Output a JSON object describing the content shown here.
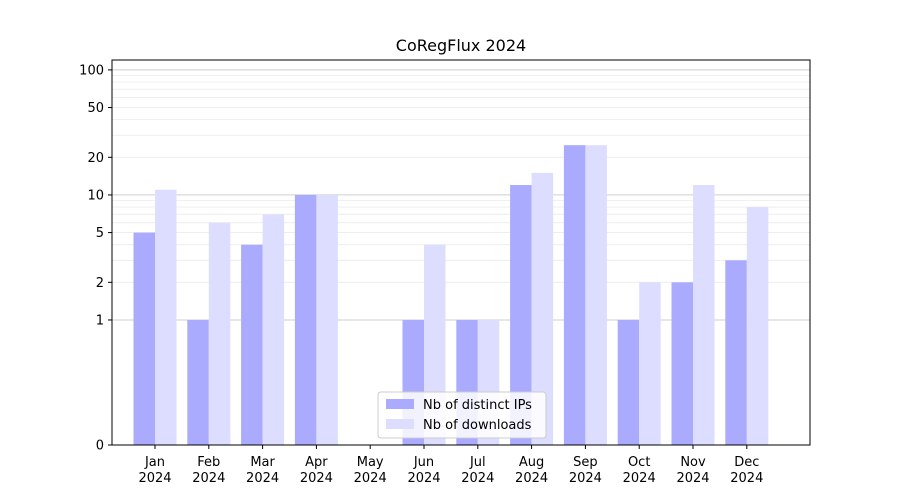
{
  "chart_data": {
    "type": "bar",
    "title": "CoRegFlux 2024",
    "xlabel": "",
    "ylabel": "",
    "yscale": "symlog",
    "yticks": [
      0,
      1,
      2,
      5,
      10,
      20,
      50,
      100
    ],
    "ylim": [
      0,
      120
    ],
    "grid": true,
    "legend_position": "bottom-center",
    "categories": [
      [
        "Jan",
        "2024"
      ],
      [
        "Feb",
        "2024"
      ],
      [
        "Mar",
        "2024"
      ],
      [
        "Apr",
        "2024"
      ],
      [
        "May",
        "2024"
      ],
      [
        "Jun",
        "2024"
      ],
      [
        "Jul",
        "2024"
      ],
      [
        "Aug",
        "2024"
      ],
      [
        "Sep",
        "2024"
      ],
      [
        "Oct",
        "2024"
      ],
      [
        "Nov",
        "2024"
      ],
      [
        "Dec",
        "2024"
      ]
    ],
    "series": [
      {
        "name": "Nb of distinct IPs",
        "color": "#aaaaff",
        "values": [
          5,
          1,
          4,
          10,
          0,
          1,
          1,
          12,
          25,
          1,
          2,
          3
        ]
      },
      {
        "name": "Nb of downloads",
        "color": "#ddddff",
        "values": [
          11,
          6,
          7,
          10,
          0,
          4,
          1,
          15,
          25,
          2,
          12,
          8
        ]
      }
    ]
  }
}
